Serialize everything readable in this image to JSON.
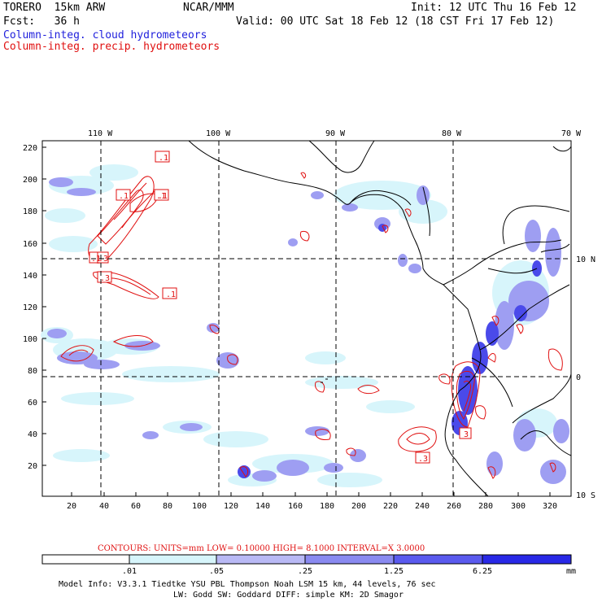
{
  "header": {
    "model": "TORERO  15km ARW",
    "org": "NCAR/MMM",
    "init": "Init: 12 UTC Thu 16 Feb 12",
    "fcst": "Fcst:   36 h",
    "valid": "Valid: 00 UTC Sat 18 Feb 12 (18 CST Fri 17 Feb 12)",
    "field1": "Column-integ. cloud hydrometeors",
    "field2": "Column-integ. precip. hydrometeors"
  },
  "colors": {
    "field1": "#1f1fdc",
    "field2": "#e01010",
    "coast": "#000000",
    "contour": "#e01010"
  },
  "top_lon_labels": [
    "110 W",
    "100 W",
    "90 W",
    "80 W",
    "70 W"
  ],
  "right_lat_labels": [
    "10 N",
    "0",
    "10 S"
  ],
  "y_ticks": [
    "220",
    "200",
    "180",
    "160",
    "140",
    "120",
    "100",
    "80",
    "60",
    "40",
    "20"
  ],
  "x_ticks": [
    "20",
    "40",
    "60",
    "80",
    "100",
    "120",
    "140",
    "160",
    "180",
    "200",
    "220",
    "240",
    "260",
    "280",
    "300",
    "320"
  ],
  "contour_labels": [
    ".1",
    ".1",
    ".1",
    ".1",
    ".3",
    ".1",
    ".3",
    ".3",
    "3",
    ".1"
  ],
  "contours_note": "CONTOURS:  UNITS=mm  LOW= 0.10000      HIGH=  8.1000      INTERVAL=X  3.0000",
  "colorbar": {
    "labels": [
      ".01",
      ".05",
      ".25",
      "1.25",
      "6.25"
    ],
    "unit": "mm",
    "colors": [
      "#ffffff",
      "#d7f5fb",
      "#b9b9f5",
      "#8a8af0",
      "#5a5aee",
      "#2828e6",
      "#1010dd"
    ]
  },
  "footer": {
    "line1": "Model Info: V3.3.1    Tiedtke YSU PBL  Thompson     Noah LSM  15 km,   44 levels,    76 sec",
    "line2": "LW: Godd SW: Goddard DIFF: simple KM: 2D Smagor"
  }
}
